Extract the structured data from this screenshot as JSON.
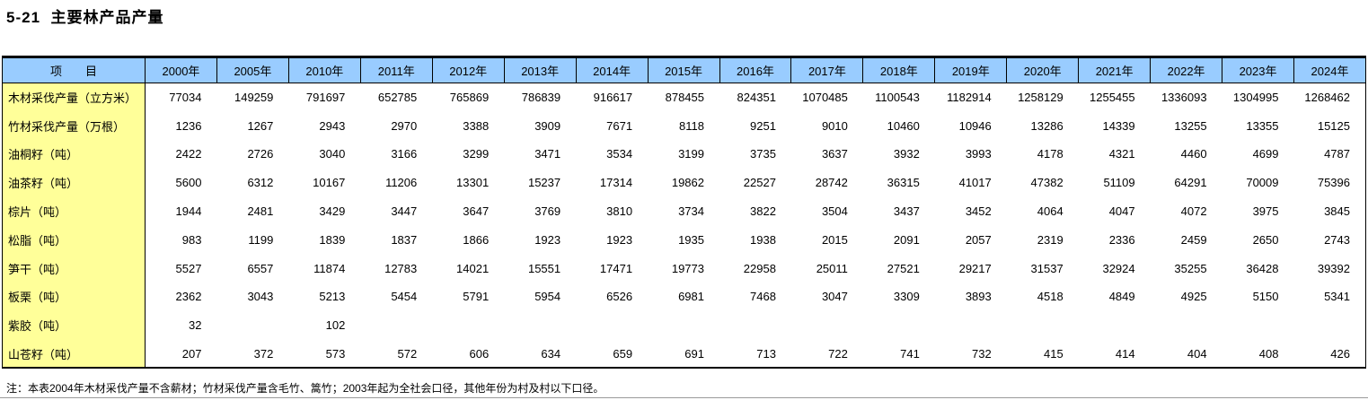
{
  "page": {
    "title": "5-21  主要林产品产量",
    "note": "注：本表2004年木材采伐产量不含薪材；竹材采伐产量含毛竹、篙竹；2003年起为全社会口径，其他年份为村及村以下口径。"
  },
  "colors": {
    "header_bg": "#99CCFF",
    "label_column_bg": "#FFFF99",
    "border": "#000000"
  },
  "table": {
    "item_header": "项　　目",
    "year_columns": [
      "2000年",
      "2005年",
      "2010年",
      "2011年",
      "2012年",
      "2013年",
      "2014年",
      "2015年",
      "2016年",
      "2017年",
      "2018年",
      "2019年",
      "2020年",
      "2021年",
      "2022年",
      "2023年",
      "2024年"
    ],
    "rows": [
      {
        "label": "木材采伐产量（立方米）",
        "values": [
          "77034",
          "149259",
          "791697",
          "652785",
          "765869",
          "786839",
          "916617",
          "878455",
          "824351",
          "1070485",
          "1100543",
          "1182914",
          "1258129",
          "1255455",
          "1336093",
          "1304995",
          "1268462"
        ]
      },
      {
        "label": "竹材采伐产量（万根）",
        "values": [
          "1236",
          "1267",
          "2943",
          "2970",
          "3388",
          "3909",
          "7671",
          "8118",
          "9251",
          "9010",
          "10460",
          "10946",
          "13286",
          "14339",
          "13255",
          "13355",
          "15125"
        ]
      },
      {
        "label": "油桐籽（吨）",
        "values": [
          "2422",
          "2726",
          "3040",
          "3166",
          "3299",
          "3471",
          "3534",
          "3199",
          "3735",
          "3637",
          "3932",
          "3993",
          "4178",
          "4321",
          "4460",
          "4699",
          "4787"
        ]
      },
      {
        "label": "油茶籽（吨）",
        "values": [
          "5600",
          "6312",
          "10167",
          "11206",
          "13301",
          "15237",
          "17314",
          "19862",
          "22527",
          "28742",
          "36315",
          "41017",
          "47382",
          "51109",
          "64291",
          "70009",
          "75396"
        ]
      },
      {
        "label": "棕片（吨）",
        "values": [
          "1944",
          "2481",
          "3429",
          "3447",
          "3647",
          "3769",
          "3810",
          "3734",
          "3822",
          "3504",
          "3437",
          "3452",
          "4064",
          "4047",
          "4072",
          "3975",
          "3845"
        ]
      },
      {
        "label": "松脂（吨）",
        "values": [
          "983",
          "1199",
          "1839",
          "1837",
          "1866",
          "1923",
          "1923",
          "1935",
          "1938",
          "2015",
          "2091",
          "2057",
          "2319",
          "2336",
          "2459",
          "2650",
          "2743"
        ]
      },
      {
        "label": "笋干（吨）",
        "values": [
          "5527",
          "6557",
          "11874",
          "12783",
          "14021",
          "15551",
          "17471",
          "19773",
          "22958",
          "25011",
          "27521",
          "29217",
          "31537",
          "32924",
          "35255",
          "36428",
          "39392"
        ]
      },
      {
        "label": "板栗（吨）",
        "values": [
          "2362",
          "3043",
          "5213",
          "5454",
          "5791",
          "5954",
          "6526",
          "6981",
          "7468",
          "3047",
          "3309",
          "3893",
          "4518",
          "4849",
          "4925",
          "5150",
          "5341"
        ]
      },
      {
        "label": "紫胶（吨）",
        "values": [
          "32",
          "",
          "102",
          "",
          "",
          "",
          "",
          "",
          "",
          "",
          "",
          "",
          "",
          "",
          "",
          "",
          ""
        ]
      },
      {
        "label": "山苍籽（吨）",
        "values": [
          "207",
          "372",
          "573",
          "572",
          "606",
          "634",
          "659",
          "691",
          "713",
          "722",
          "741",
          "732",
          "415",
          "414",
          "404",
          "408",
          "426"
        ]
      }
    ]
  }
}
